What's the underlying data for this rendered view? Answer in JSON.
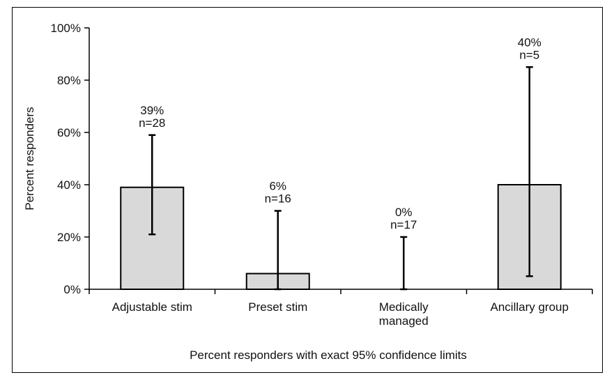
{
  "chart_data": {
    "type": "bar",
    "title": "",
    "caption": "Percent responders with exact 95% confidence limits",
    "xlabel": "",
    "ylabel": "Percent responders",
    "ylim": [
      0,
      100
    ],
    "yticks": [
      {
        "value": 0,
        "label": "0%"
      },
      {
        "value": 20,
        "label": "20%"
      },
      {
        "value": 40,
        "label": "40%"
      },
      {
        "value": 60,
        "label": "60%"
      },
      {
        "value": 80,
        "label": "80%"
      },
      {
        "value": 100,
        "label": "100%"
      }
    ],
    "categories": [
      [
        "Adjustable stim"
      ],
      [
        "Preset stim"
      ],
      [
        "Medically",
        "managed"
      ],
      [
        "Ancillary group"
      ]
    ],
    "values": [
      39,
      6,
      0,
      40
    ],
    "ci_lower": [
      21,
      0,
      0,
      5
    ],
    "ci_upper": [
      59,
      30,
      20,
      85
    ],
    "data_labels": [
      {
        "pct": "39%",
        "n": "n=28"
      },
      {
        "pct": "6%",
        "n": "n=16"
      },
      {
        "pct": "0%",
        "n": "n=17"
      },
      {
        "pct": "40%",
        "n": "n=5"
      }
    ],
    "bar_color": "#d9d9d9",
    "edge_color": "#000000",
    "grid": false,
    "legend": "none"
  }
}
